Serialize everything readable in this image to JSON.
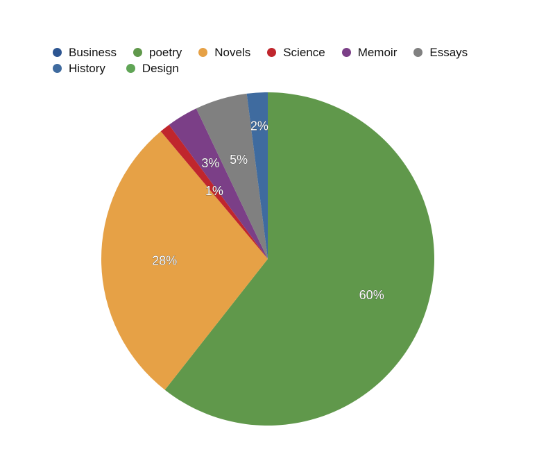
{
  "chart_data": {
    "type": "pie",
    "series": [
      {
        "name": "Business",
        "value": 0,
        "label": "",
        "color": "#2d5591"
      },
      {
        "name": "poetry",
        "value": 60,
        "label": "60%",
        "color": "#60984b"
      },
      {
        "name": "Novels",
        "value": 28,
        "label": "28%",
        "color": "#e6a146"
      },
      {
        "name": "Science",
        "value": 1,
        "label": "1%",
        "color": "#c0262d"
      },
      {
        "name": "Memoir",
        "value": 3,
        "label": "3%",
        "color": "#7b3f87"
      },
      {
        "name": "Essays",
        "value": 5,
        "label": "5%",
        "color": "#808080"
      },
      {
        "name": "History",
        "value": 2,
        "label": "2%",
        "color": "#3f6b9f"
      },
      {
        "name": "Design",
        "value": 0,
        "label": "",
        "color": "#60a556"
      }
    ],
    "legend_position": "top-left",
    "start_angle": "12 o'clock",
    "direction": "clockwise"
  }
}
